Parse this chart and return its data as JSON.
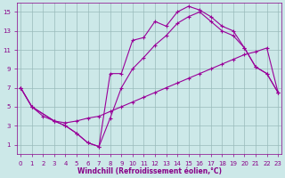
{
  "bg_color": "#cce8e8",
  "line_color": "#990099",
  "grid_color": "#99bbbb",
  "xlabel": "Windchill (Refroidissement éolien,°C)",
  "xlabel_color": "#880088",
  "tick_color": "#880088",
  "xlim": [
    -0.3,
    23.3
  ],
  "ylim": [
    0,
    16
  ],
  "xticks": [
    0,
    1,
    2,
    3,
    4,
    5,
    6,
    7,
    8,
    9,
    10,
    11,
    12,
    13,
    14,
    15,
    16,
    17,
    18,
    19,
    20,
    21,
    22,
    23
  ],
  "yticks": [
    1,
    3,
    5,
    7,
    9,
    11,
    13,
    15
  ],
  "line1_x": [
    0,
    1,
    3,
    4,
    5,
    6,
    7,
    8,
    9,
    10,
    11,
    12,
    13,
    14,
    15,
    16,
    17,
    18,
    19,
    20,
    21,
    22,
    23
  ],
  "line1_y": [
    7,
    5,
    3.5,
    3.0,
    2.2,
    1.2,
    0.8,
    8.5,
    8.5,
    12.0,
    12.3,
    14.0,
    13.5,
    15.0,
    15.6,
    15.2,
    14.5,
    13.5,
    13.0,
    11.2,
    9.2,
    8.5,
    6.5
  ],
  "line2_x": [
    0,
    1,
    3,
    4,
    5,
    6,
    7,
    8,
    9,
    10,
    11,
    12,
    13,
    14,
    15,
    16,
    17,
    18,
    19,
    20,
    21,
    22,
    23
  ],
  "line2_y": [
    7,
    5,
    3.5,
    3.0,
    2.2,
    1.2,
    0.8,
    3.8,
    7.0,
    9.0,
    10.2,
    11.5,
    12.5,
    13.8,
    14.5,
    15.0,
    14.0,
    13.0,
    12.5,
    11.2,
    9.2,
    8.5,
    6.5
  ],
  "line3_x": [
    0,
    1,
    2,
    3,
    4,
    5,
    6,
    7,
    8,
    9,
    10,
    11,
    12,
    13,
    14,
    15,
    16,
    17,
    18,
    19,
    20,
    21,
    22,
    23
  ],
  "line3_y": [
    7,
    5,
    4.0,
    3.5,
    3.3,
    3.5,
    3.8,
    4.0,
    4.5,
    5.0,
    5.5,
    6.0,
    6.5,
    7.0,
    7.5,
    8.0,
    8.5,
    9.0,
    9.5,
    10.0,
    10.5,
    10.8,
    11.2,
    6.5
  ],
  "markersize": 2.5,
  "linewidth": 0.8
}
